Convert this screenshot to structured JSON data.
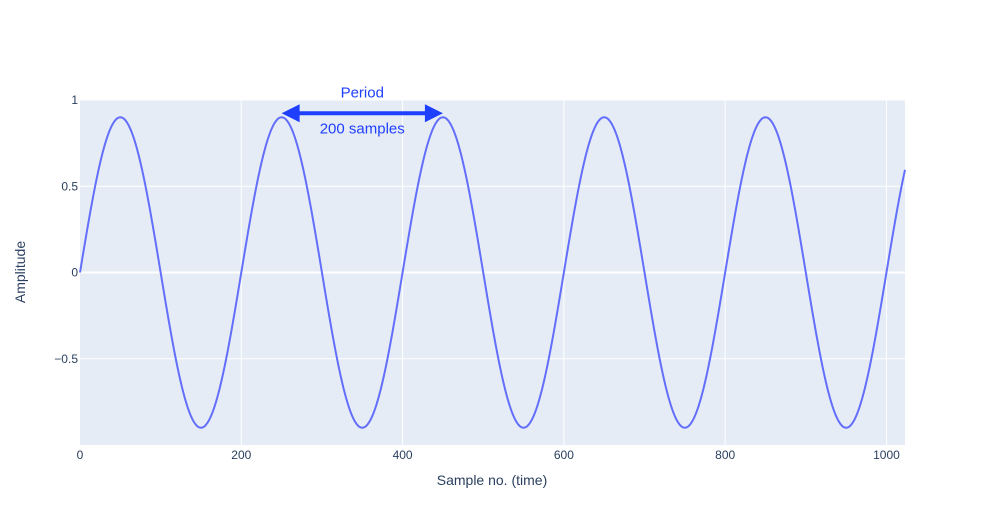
{
  "chart_data": {
    "type": "line",
    "xlabel": "Sample no. (time)",
    "ylabel": "Amplitude",
    "xlim": [
      0,
      1023
    ],
    "ylim": [
      -1.0,
      1.0
    ],
    "x_ticks": [
      0,
      200,
      400,
      600,
      800,
      1000
    ],
    "x_tick_labels": [
      "0",
      "200",
      "400",
      "600",
      "800",
      "1000"
    ],
    "y_ticks": [
      1,
      0.5,
      0,
      -0.5
    ],
    "y_tick_labels": [
      "1",
      "0.5",
      "0",
      "−0.5"
    ],
    "grid": true,
    "background_color": "#e5ecf6",
    "series": [
      {
        "color": "#636efa",
        "amplitude": 0.9,
        "period_samples": 200,
        "x_start": 0,
        "x_end": 1023
      }
    ],
    "annotations": [
      {
        "type": "double-arrow",
        "x_from": 250,
        "x_to": 450,
        "y": 0.9,
        "label_above": "Period",
        "label_below": "200 samples",
        "color": "#1f3fff"
      }
    ]
  }
}
